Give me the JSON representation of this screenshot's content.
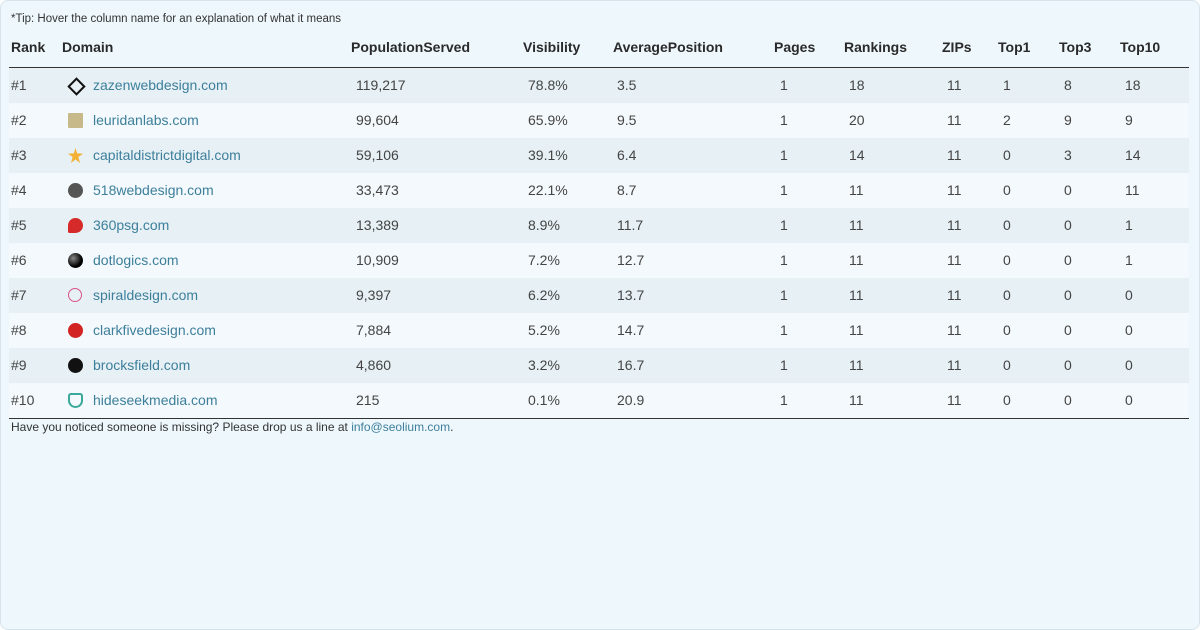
{
  "tip": "*Tip: Hover the column name for an explanation of what it means",
  "table": {
    "headers": [
      "Rank",
      "Domain",
      "PopulationServed",
      "Visibility",
      "AveragePosition",
      "Pages",
      "Rankings",
      "ZIPs",
      "Top1",
      "Top3",
      "Top10"
    ],
    "rows": [
      [
        "#1",
        "zazenwebdesign.com",
        "119,217",
        "78.8%",
        "3.5",
        "1",
        "18",
        "11",
        "1",
        "8",
        "18"
      ],
      [
        "#2",
        "leuridanlabs.com",
        "99,604",
        "65.9%",
        "9.5",
        "1",
        "20",
        "11",
        "2",
        "9",
        "9"
      ],
      [
        "#3",
        "capitaldistrictdigital.com",
        "59,106",
        "39.1%",
        "6.4",
        "1",
        "14",
        "11",
        "0",
        "3",
        "14"
      ],
      [
        "#4",
        "518webdesign.com",
        "33,473",
        "22.1%",
        "8.7",
        "1",
        "11",
        "11",
        "0",
        "0",
        "11"
      ],
      [
        "#5",
        "360psg.com",
        "13,389",
        "8.9%",
        "11.7",
        "1",
        "11",
        "11",
        "0",
        "0",
        "1"
      ],
      [
        "#6",
        "dotlogics.com",
        "10,909",
        "7.2%",
        "12.7",
        "1",
        "11",
        "11",
        "0",
        "0",
        "1"
      ],
      [
        "#7",
        "spiraldesign.com",
        "9,397",
        "6.2%",
        "13.7",
        "1",
        "11",
        "11",
        "0",
        "0",
        "0"
      ],
      [
        "#8",
        "clarkfivedesign.com",
        "7,884",
        "5.2%",
        "14.7",
        "1",
        "11",
        "11",
        "0",
        "0",
        "0"
      ],
      [
        "#9",
        "brocksfield.com",
        "4,860",
        "3.2%",
        "16.7",
        "1",
        "11",
        "11",
        "0",
        "0",
        "0"
      ],
      [
        "#10",
        "hideseekmedia.com",
        "215",
        "0.1%",
        "20.9",
        "1",
        "11",
        "11",
        "0",
        "0",
        "0"
      ]
    ]
  },
  "footer": {
    "text": "Have you noticed someone is missing? Please drop us a line at ",
    "link": "info@seolium.com",
    "end": "."
  }
}
